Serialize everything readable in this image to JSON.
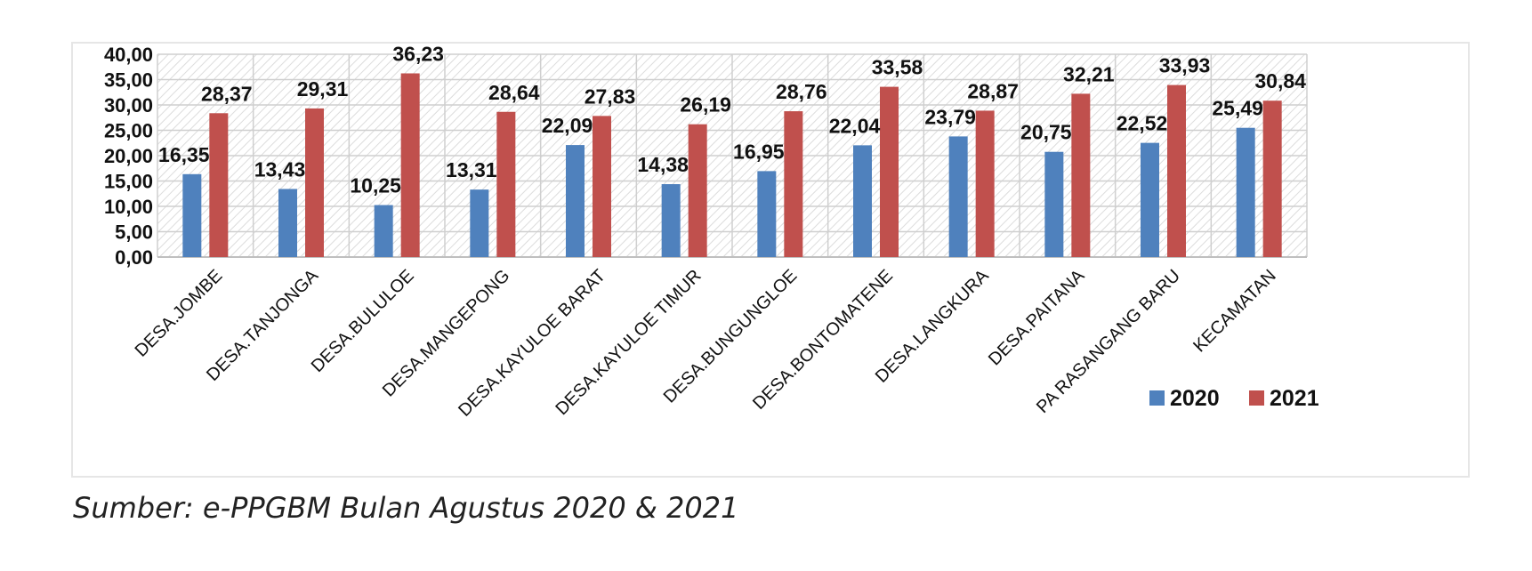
{
  "chart_data": {
    "type": "bar",
    "categories": [
      "DESA.JOMBE",
      "DESA.TANJONGA",
      "DESA.BULULOE",
      "DESA.MANGEPONG",
      "DESA.KAYULOE BARAT",
      "DESA.KAYULOE TIMUR",
      "DESA.BUNGUNGLOE",
      "DESA.BONTOMATENE",
      "DESA.LANGKURA",
      "DESA.PAITANA",
      "PA RASANGANG BARU",
      "KECAMATAN"
    ],
    "series": [
      {
        "name": "2020",
        "color": "#4f81bd",
        "values": [
          16.35,
          13.43,
          10.25,
          13.31,
          22.09,
          14.38,
          16.95,
          22.04,
          23.79,
          20.75,
          22.52,
          25.49
        ],
        "labels": [
          "16,35",
          "13,43",
          "10,25",
          "13,31",
          "22,09",
          "14,38",
          "16,95",
          "22,04",
          "23,79",
          "20,75",
          "22,52",
          "25,49"
        ]
      },
      {
        "name": "2021",
        "color": "#c0504d",
        "values": [
          28.37,
          29.31,
          36.23,
          28.64,
          27.83,
          26.19,
          28.76,
          33.58,
          28.87,
          32.21,
          33.93,
          30.84
        ],
        "labels": [
          "28,37",
          "29,31",
          "36,23",
          "28,64",
          "27,83",
          "26,19",
          "28,76",
          "33,58",
          "28,87",
          "32,21",
          "33,93",
          "30,84"
        ]
      }
    ],
    "ylim": [
      0,
      40
    ],
    "yticks": [
      "0,00",
      "5,00",
      "10,00",
      "15,00",
      "20,00",
      "25,00",
      "30,00",
      "35,00",
      "40,00"
    ],
    "grid": true,
    "legend": "bottom-right",
    "title": "",
    "xlabel": "",
    "ylabel": ""
  },
  "source_note": "Sumber: e-PPGBM Bulan Agustus 2020 & 2021"
}
